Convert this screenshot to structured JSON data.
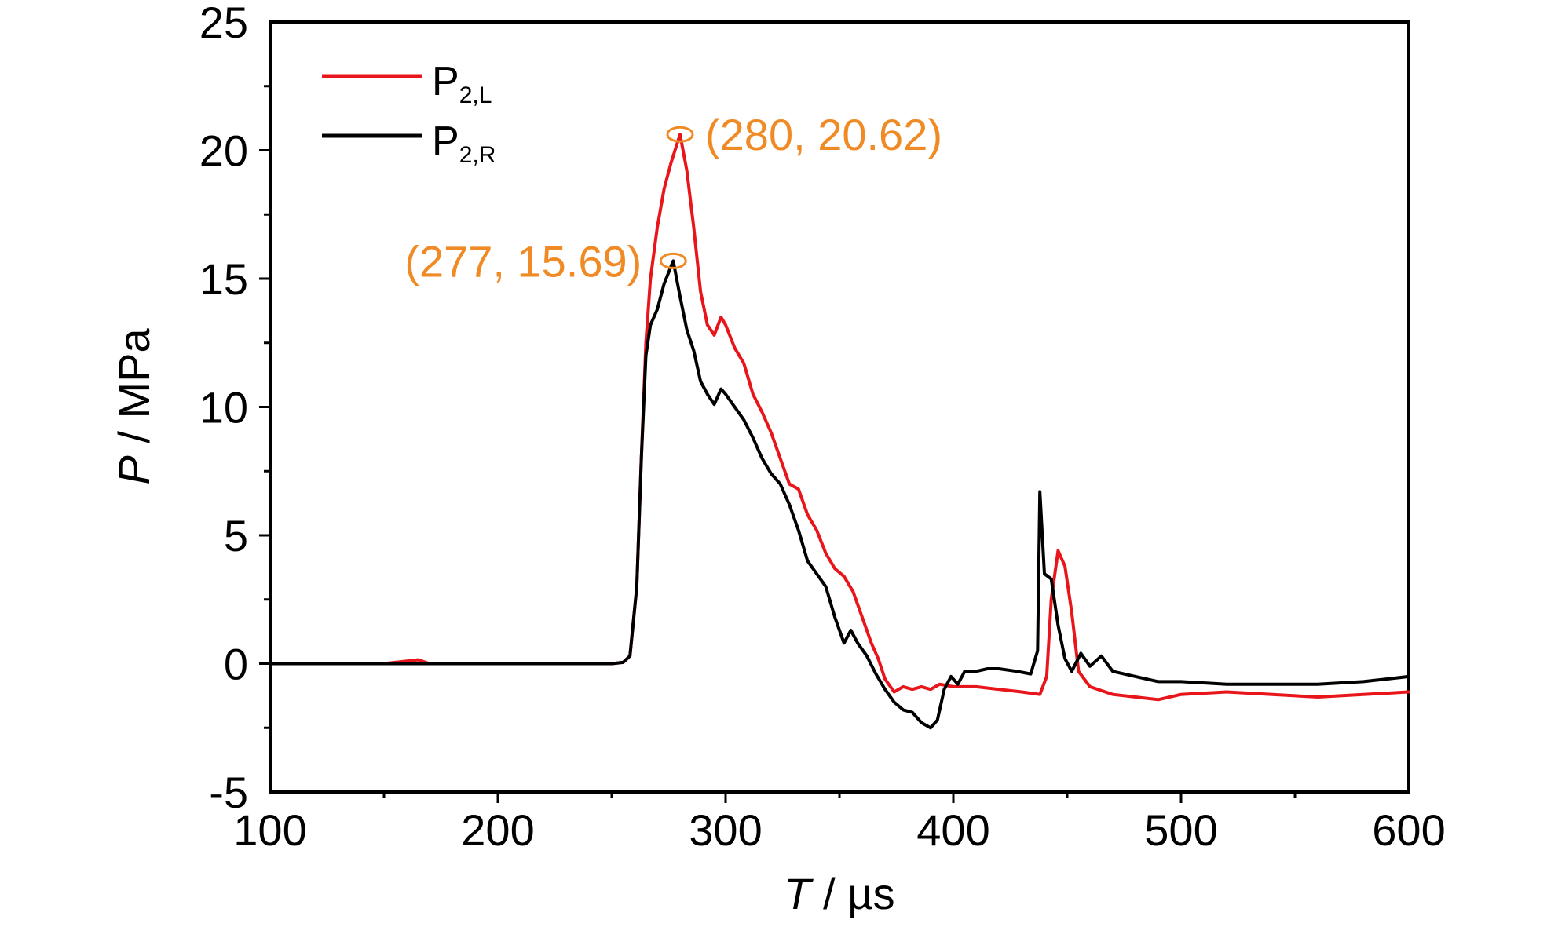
{
  "chart_data": {
    "type": "line",
    "title": "",
    "xlabel": {
      "var": "T",
      "unit": " / µs"
    },
    "ylabel": {
      "var": "P",
      "unit": " / MPa"
    },
    "xlim": [
      100,
      600
    ],
    "ylim": [
      -5,
      25
    ],
    "x_ticks": [
      "100",
      "200",
      "300",
      "400",
      "500",
      "600"
    ],
    "y_ticks": [
      "-5",
      "0",
      "5",
      "10",
      "15",
      "20",
      "25"
    ],
    "grid": false,
    "legend_position": "top-left",
    "series": [
      {
        "name": "P",
        "subscript": "2,L",
        "color": "#e8151b",
        "points": [
          [
            100,
            0
          ],
          [
            150,
            0
          ],
          [
            165,
            0.15
          ],
          [
            170,
            0
          ],
          [
            200,
            0
          ],
          [
            250,
            0
          ],
          [
            255,
            0.05
          ],
          [
            258,
            0.3
          ],
          [
            261,
            3
          ],
          [
            263,
            8
          ],
          [
            265,
            12.5
          ],
          [
            267,
            15
          ],
          [
            270,
            17
          ],
          [
            273,
            18.5
          ],
          [
            276,
            19.5
          ],
          [
            280,
            20.62
          ],
          [
            283,
            19.2
          ],
          [
            286,
            17
          ],
          [
            289,
            14.5
          ],
          [
            292,
            13.2
          ],
          [
            295,
            12.8
          ],
          [
            298,
            13.5
          ],
          [
            300,
            13.2
          ],
          [
            304,
            12.3
          ],
          [
            308,
            11.7
          ],
          [
            312,
            10.5
          ],
          [
            316,
            9.8
          ],
          [
            320,
            9.0
          ],
          [
            324,
            8.0
          ],
          [
            328,
            7.0
          ],
          [
            332,
            6.8
          ],
          [
            336,
            5.8
          ],
          [
            340,
            5.2
          ],
          [
            344,
            4.3
          ],
          [
            348,
            3.7
          ],
          [
            352,
            3.4
          ],
          [
            356,
            2.8
          ],
          [
            360,
            1.8
          ],
          [
            364,
            0.8
          ],
          [
            367,
            0.2
          ],
          [
            370,
            -0.6
          ],
          [
            374,
            -1.1
          ],
          [
            378,
            -0.9
          ],
          [
            382,
            -1.0
          ],
          [
            386,
            -0.9
          ],
          [
            390,
            -1.0
          ],
          [
            394,
            -0.8
          ],
          [
            400,
            -0.9
          ],
          [
            410,
            -0.9
          ],
          [
            420,
            -1.0
          ],
          [
            430,
            -1.1
          ],
          [
            438,
            -1.2
          ],
          [
            441,
            -0.5
          ],
          [
            443,
            2.5
          ],
          [
            446,
            4.4
          ],
          [
            449,
            3.8
          ],
          [
            452,
            2.0
          ],
          [
            455,
            -0.3
          ],
          [
            460,
            -0.9
          ],
          [
            470,
            -1.2
          ],
          [
            480,
            -1.3
          ],
          [
            490,
            -1.4
          ],
          [
            500,
            -1.2
          ],
          [
            520,
            -1.1
          ],
          [
            540,
            -1.2
          ],
          [
            560,
            -1.3
          ],
          [
            580,
            -1.2
          ],
          [
            600,
            -1.1
          ]
        ]
      },
      {
        "name": "P",
        "subscript": "2,R",
        "color": "#000000",
        "points": [
          [
            100,
            0
          ],
          [
            150,
            0
          ],
          [
            200,
            0
          ],
          [
            250,
            0
          ],
          [
            255,
            0.05
          ],
          [
            258,
            0.3
          ],
          [
            261,
            3
          ],
          [
            263,
            8
          ],
          [
            265,
            12
          ],
          [
            267,
            13.2
          ],
          [
            270,
            13.8
          ],
          [
            273,
            14.8
          ],
          [
            277,
            15.69
          ],
          [
            280,
            14.3
          ],
          [
            283,
            13.0
          ],
          [
            286,
            12.2
          ],
          [
            289,
            11.0
          ],
          [
            292,
            10.5
          ],
          [
            295,
            10.1
          ],
          [
            298,
            10.7
          ],
          [
            300,
            10.5
          ],
          [
            304,
            10.0
          ],
          [
            308,
            9.5
          ],
          [
            312,
            8.8
          ],
          [
            316,
            8.0
          ],
          [
            320,
            7.4
          ],
          [
            324,
            7.0
          ],
          [
            328,
            6.2
          ],
          [
            332,
            5.2
          ],
          [
            336,
            4.0
          ],
          [
            340,
            3.5
          ],
          [
            344,
            3.0
          ],
          [
            348,
            1.8
          ],
          [
            352,
            0.8
          ],
          [
            355,
            1.3
          ],
          [
            358,
            0.8
          ],
          [
            362,
            0.3
          ],
          [
            366,
            -0.4
          ],
          [
            370,
            -1.0
          ],
          [
            374,
            -1.5
          ],
          [
            378,
            -1.8
          ],
          [
            382,
            -1.9
          ],
          [
            386,
            -2.3
          ],
          [
            390,
            -2.5
          ],
          [
            393,
            -2.2
          ],
          [
            396,
            -1.0
          ],
          [
            399,
            -0.5
          ],
          [
            402,
            -0.8
          ],
          [
            405,
            -0.3
          ],
          [
            410,
            -0.3
          ],
          [
            415,
            -0.2
          ],
          [
            420,
            -0.2
          ],
          [
            428,
            -0.3
          ],
          [
            434,
            -0.4
          ],
          [
            437,
            0.5
          ],
          [
            438,
            6.7
          ],
          [
            440,
            3.5
          ],
          [
            443,
            3.3
          ],
          [
            446,
            1.5
          ],
          [
            449,
            0.2
          ],
          [
            452,
            -0.3
          ],
          [
            456,
            0.4
          ],
          [
            460,
            -0.1
          ],
          [
            465,
            0.3
          ],
          [
            470,
            -0.3
          ],
          [
            480,
            -0.5
          ],
          [
            490,
            -0.7
          ],
          [
            500,
            -0.7
          ],
          [
            520,
            -0.8
          ],
          [
            540,
            -0.8
          ],
          [
            560,
            -0.8
          ],
          [
            580,
            -0.7
          ],
          [
            600,
            -0.5
          ]
        ]
      }
    ],
    "annotations": [
      {
        "x": 280,
        "y": 20.62,
        "label": "(280, 20.62)",
        "side": "right",
        "color": "#f08a24"
      },
      {
        "x": 277,
        "y": 15.69,
        "label": "(277, 15.69)",
        "side": "left",
        "color": "#f08a24"
      }
    ]
  }
}
